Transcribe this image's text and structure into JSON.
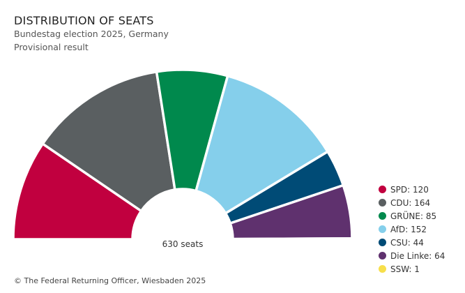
{
  "chart_data": {
    "type": "pie",
    "variant": "parliament-half-donut",
    "title": "DISTRIBUTION OF SEATS",
    "subtitle": "Bundestag election 2025, Germany",
    "subtitle2": "Provisional result",
    "total_label": "630 seats",
    "total": 630,
    "parties": [
      {
        "name": "SPD",
        "seats": 120,
        "color": "#c1003f",
        "label": "SPD: 120"
      },
      {
        "name": "CDU",
        "seats": 164,
        "color": "#5a5f61",
        "label": "CDU: 164"
      },
      {
        "name": "GRÜNE",
        "seats": 85,
        "color": "#00894d",
        "label": "GRÜNE: 85"
      },
      {
        "name": "AfD",
        "seats": 152,
        "color": "#85cfeb",
        "label": "AfD: 152"
      },
      {
        "name": "CSU",
        "seats": 44,
        "color": "#004b76",
        "label": "CSU: 44"
      },
      {
        "name": "Die Linke",
        "seats": 64,
        "color": "#5f316e",
        "label": "Die Linke: 64"
      },
      {
        "name": "SSW",
        "seats": 1,
        "color": "#f7df4b",
        "label": "SSW: 1"
      }
    ],
    "legend_position": "right"
  },
  "footer": "© The Federal Returning Officer, Wiesbaden 2025"
}
